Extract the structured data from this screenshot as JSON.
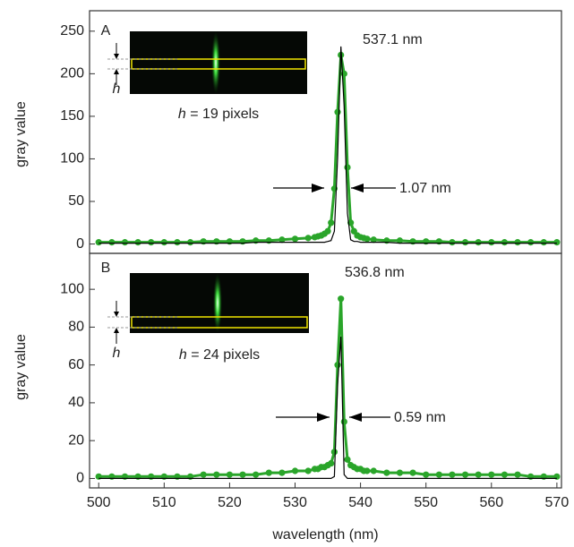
{
  "chart_data": [
    {
      "type": "line",
      "panel_label": "A",
      "ylabel": "gray value",
      "peak_label": "537.1 nm",
      "width_label": "1.07 nm",
      "caption_symbol": "h",
      "caption_text": "= 19 pixels",
      "inset_symbol": "h",
      "x": [
        500,
        502,
        504,
        506,
        508,
        510,
        512,
        514,
        516,
        518,
        520,
        522,
        524,
        526,
        528,
        530,
        532,
        533,
        533.5,
        534,
        534.5,
        535,
        535.5,
        536,
        536.5,
        537,
        537.5,
        538,
        538.5,
        539,
        539.5,
        540,
        540.5,
        541,
        542,
        544,
        546,
        548,
        550,
        552,
        554,
        556,
        558,
        560,
        562,
        564,
        566,
        568,
        570
      ],
      "series": [
        {
          "color": "#2aa52a",
          "values": [
            2,
            2,
            2,
            2,
            2,
            2,
            2,
            2,
            3,
            3,
            3,
            3,
            4,
            4,
            5,
            6,
            7,
            8,
            9,
            10,
            12,
            15,
            25,
            65,
            155,
            222,
            200,
            90,
            25,
            15,
            10,
            8,
            7,
            6,
            5,
            4,
            4,
            3,
            3,
            3,
            2,
            2,
            2,
            2,
            2,
            2,
            2,
            2,
            2
          ]
        },
        {
          "color": "#000000",
          "values": [
            1,
            1,
            1,
            1,
            1,
            1,
            1,
            1,
            1,
            1,
            1,
            1,
            2,
            2,
            2,
            2,
            2,
            2,
            2,
            2,
            2,
            3,
            4,
            15,
            101,
            232,
            162,
            36,
            5,
            3,
            3,
            2,
            2,
            2,
            2,
            2,
            1,
            1,
            1,
            1,
            1,
            1,
            1,
            1,
            1,
            1,
            1,
            1,
            1
          ]
        }
      ],
      "xlim": [
        498.6,
        570.7
      ],
      "ylim": [
        -11,
        274
      ],
      "yticks": [
        0,
        50,
        100,
        150,
        200,
        250
      ]
    },
    {
      "type": "line",
      "panel_label": "B",
      "ylabel": "gray value",
      "xlabel": "wavelength (nm)",
      "peak_label": "536.8 nm",
      "width_label": "0.59 nm",
      "caption_symbol": "h",
      "caption_text": "= 24 pixels",
      "inset_symbol": "h",
      "x": [
        500,
        502,
        504,
        506,
        508,
        510,
        512,
        514,
        516,
        518,
        520,
        522,
        524,
        526,
        528,
        530,
        532,
        533,
        533.5,
        534,
        534.5,
        535,
        535.5,
        536,
        536.5,
        537,
        537.5,
        538,
        538.5,
        539,
        539.5,
        540,
        540.5,
        541,
        542,
        544,
        546,
        548,
        550,
        552,
        554,
        556,
        558,
        560,
        562,
        564,
        566,
        568,
        570
      ],
      "series": [
        {
          "color": "#2aa52a",
          "values": [
            1,
            1,
            1,
            1,
            1,
            1,
            1,
            1,
            2,
            2,
            2,
            2,
            2,
            3,
            3,
            4,
            4,
            5,
            5,
            6,
            6,
            7,
            8,
            14,
            60,
            95,
            30,
            10,
            7,
            6,
            5,
            5,
            4,
            4,
            4,
            3,
            3,
            3,
            2,
            2,
            2,
            2,
            2,
            2,
            2,
            2,
            1,
            1,
            1
          ]
        },
        {
          "color": "#000000",
          "values": [
            0,
            0,
            0,
            0,
            0,
            0,
            0,
            0,
            0,
            0,
            0,
            0,
            0,
            0,
            0,
            0,
            0,
            0,
            0,
            0,
            0,
            0,
            0,
            1,
            50,
            75,
            2,
            0,
            0,
            0,
            0,
            0,
            0,
            0,
            0,
            0,
            0,
            0,
            0,
            0,
            0,
            0,
            0,
            0,
            0,
            0,
            0,
            0,
            0
          ]
        }
      ],
      "xlim": [
        498.6,
        570.7
      ],
      "ylim": [
        -5,
        119
      ],
      "yticks": [
        0,
        20,
        40,
        60,
        80,
        100
      ],
      "xticks": [
        500,
        510,
        520,
        530,
        540,
        550,
        560,
        570
      ]
    }
  ]
}
